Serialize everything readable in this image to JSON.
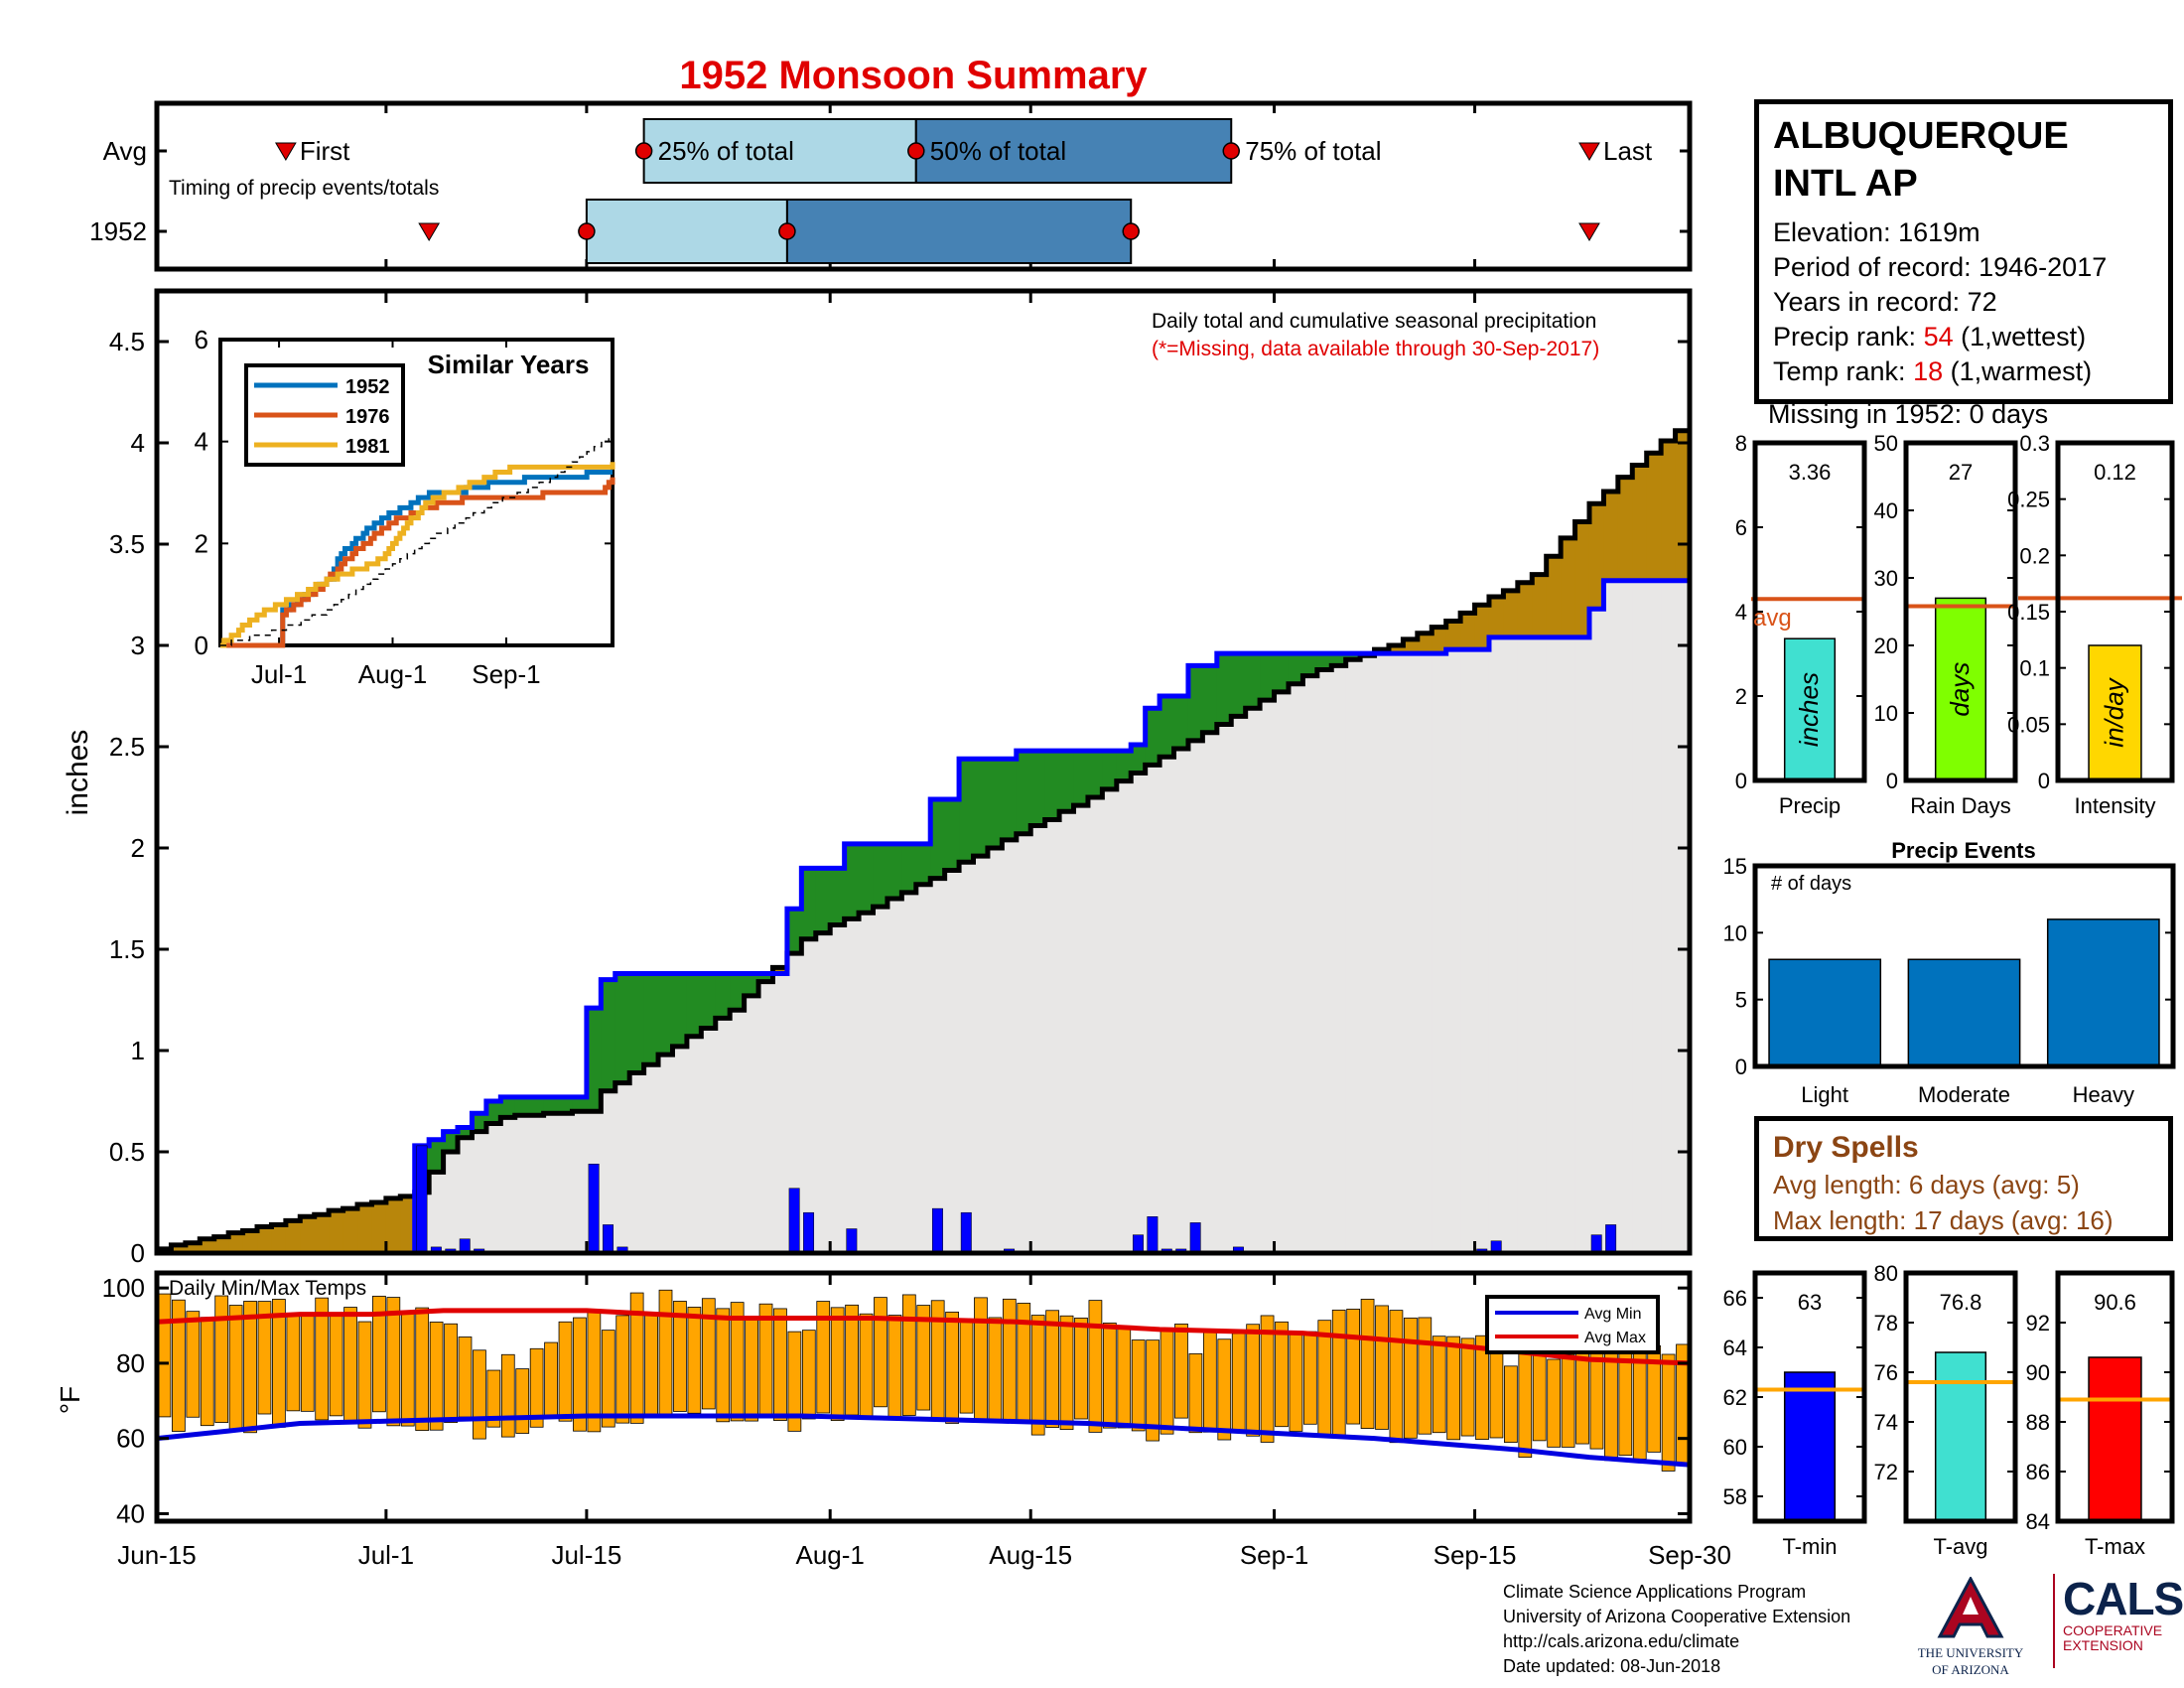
{
  "title": "1952 Monsoon Summary",
  "station": {
    "name_line1": "ALBUQUERQUE",
    "name_line2": "INTL AP",
    "elevation": "Elevation: 1619m",
    "period": "Period of record: 1946-2017",
    "years": "Years in record: 72",
    "precip_rank_label": "Precip rank: ",
    "precip_rank_value": "54",
    "precip_rank_note": " (1,wettest)",
    "temp_rank_label": "Temp rank: ",
    "temp_rank_value": "18",
    "temp_rank_note": " (1,warmest)",
    "missing": "Missing in 1952: 0 days"
  },
  "dry_spells": {
    "title": "Dry Spells",
    "avg": "Avg length: 6 days (avg: 5)",
    "max": "Max length: 17 days (avg: 16)"
  },
  "credits": {
    "line1": "Climate Science Applications Program",
    "line2": "University of Arizona Cooperative Extension",
    "line3": "http://cals.arizona.edu/climate",
    "line4": " Date updated: 08-Jun-2018"
  },
  "logos": {
    "ua_line1": "THE UNIVERSITY",
    "ua_line2": "OF ARIZONA",
    "cals": "CALS",
    "cals_sub1": "COOPERATIVE",
    "cals_sub2": "EXTENSION"
  },
  "colors": {
    "title": "#e00000",
    "above_avg": "#b8860b",
    "below_avg": "#228b22",
    "avg_line": "#0000ff",
    "cum_line": "#000000",
    "fill_bg": "#e8e7e6",
    "bar_light": "#add8e6",
    "bar_dark": "#4682b4",
    "temp_bar": "#ffa500",
    "avg_ref": "#d95319",
    "events_bar": "#0072bd"
  },
  "chart_data": [
    {
      "id": "timing",
      "type": "bar",
      "xticklabels": [
        "Jun-15",
        "Jul-1",
        "Jul-15",
        "Aug-1",
        "Aug-15",
        "Sep-1",
        "Sep-15",
        "Sep-30"
      ],
      "xticks_day": [
        0,
        16,
        30,
        47,
        61,
        78,
        92,
        107
      ],
      "rows": [
        "Avg",
        "1952"
      ],
      "note": "Timing of precip events/totals",
      "labels": {
        "first": "First",
        "p25": "25% of total",
        "p50": "50% of total",
        "p75": "75% of total",
        "last": "Last"
      },
      "avg": {
        "first": 9,
        "p25": 34,
        "p50": 53,
        "p75": 75,
        "last": 100
      },
      "y1952": {
        "first": 19,
        "p25": 30,
        "p50": 44,
        "p75": 68,
        "last": 100
      }
    },
    {
      "id": "cumulative",
      "type": "area",
      "title": "Daily total and cumulative seasonal precipitation",
      "subtitle": "(*=Missing, data available through 30-Sep-2017)",
      "ylabel": "inches",
      "ylim": [
        0,
        4.75
      ],
      "yticks": [
        0,
        0.5,
        1,
        1.5,
        2,
        2.5,
        3,
        3.5,
        4,
        4.5
      ],
      "yticklabels": [
        "0",
        "0.5",
        "1",
        "1.5",
        "2",
        "2.5",
        "3",
        "3.5",
        "4",
        "4.5"
      ],
      "xlim_days": [
        0,
        107
      ],
      "avg_cum": [
        [
          0,
          0.02
        ],
        [
          18,
          0.3
        ],
        [
          19,
          0.4
        ],
        [
          20,
          0.5
        ],
        [
          21,
          0.57
        ],
        [
          22,
          0.6
        ],
        [
          24,
          0.67
        ],
        [
          30,
          0.7
        ],
        [
          31,
          0.8
        ],
        [
          40,
          1.2
        ],
        [
          45,
          1.55
        ],
        [
          52,
          1.78
        ],
        [
          58,
          2.0
        ],
        [
          65,
          2.25
        ],
        [
          70,
          2.45
        ],
        [
          75,
          2.65
        ],
        [
          80,
          2.85
        ],
        [
          86,
          3.0
        ],
        [
          90,
          3.12
        ],
        [
          96,
          3.35
        ],
        [
          100,
          3.7
        ],
        [
          104,
          3.95
        ],
        [
          107,
          4.12
        ]
      ],
      "obs_cum": [
        [
          0,
          0
        ],
        [
          18,
          0
        ],
        [
          18,
          0.53
        ],
        [
          19,
          0.56
        ],
        [
          20,
          0.6
        ],
        [
          21,
          0.62
        ],
        [
          22,
          0.69
        ],
        [
          23,
          0.75
        ],
        [
          24,
          0.77
        ],
        [
          30,
          0.77
        ],
        [
          30,
          1.21
        ],
        [
          31,
          1.35
        ],
        [
          32,
          1.38
        ],
        [
          44,
          1.38
        ],
        [
          44,
          1.7
        ],
        [
          45,
          1.9
        ],
        [
          47,
          1.9
        ],
        [
          48,
          2.02
        ],
        [
          53,
          2.02
        ],
        [
          54,
          2.24
        ],
        [
          56,
          2.44
        ],
        [
          60,
          2.48
        ],
        [
          68,
          2.51
        ],
        [
          69,
          2.69
        ],
        [
          70,
          2.75
        ],
        [
          71,
          2.75
        ],
        [
          72,
          2.9
        ],
        [
          74,
          2.96
        ],
        [
          90,
          2.98
        ],
        [
          92,
          2.98
        ],
        [
          93,
          3.04
        ],
        [
          100,
          3.04
        ],
        [
          100,
          3.18
        ],
        [
          101,
          3.32
        ],
        [
          107,
          3.32
        ]
      ],
      "daily_precip": [
        [
          18,
          0.53
        ],
        [
          19,
          0.03
        ],
        [
          20,
          0.02
        ],
        [
          21,
          0.07
        ],
        [
          22,
          0.02
        ],
        [
          30,
          0.44
        ],
        [
          31,
          0.14
        ],
        [
          32,
          0.03
        ],
        [
          44,
          0.32
        ],
        [
          45,
          0.2
        ],
        [
          48,
          0.12
        ],
        [
          54,
          0.22
        ],
        [
          56,
          0.2
        ],
        [
          59,
          0.02
        ],
        [
          68,
          0.09
        ],
        [
          69,
          0.18
        ],
        [
          70,
          0.02
        ],
        [
          71,
          0.02
        ],
        [
          72,
          0.15
        ],
        [
          75,
          0.03
        ],
        [
          92,
          0.02
        ],
        [
          93,
          0.06
        ],
        [
          100,
          0.09
        ],
        [
          101,
          0.14
        ]
      ]
    },
    {
      "id": "similar_years",
      "type": "line",
      "title": "Similar Years",
      "ylim": [
        0,
        6
      ],
      "yticks": [
        0,
        2,
        4,
        6
      ],
      "xticks_day": [
        16,
        47,
        78
      ],
      "xticklabels": [
        "Jul-1",
        "Aug-1",
        "Sep-1"
      ],
      "series": [
        {
          "name": "1952",
          "color": "#0072bd",
          "points": [
            [
              0,
              0
            ],
            [
              16,
              0
            ],
            [
              17,
              0.7
            ],
            [
              30,
              1.3
            ],
            [
              32,
              1.7
            ],
            [
              36,
              2.0
            ],
            [
              44,
              2.5
            ],
            [
              50,
              2.7
            ],
            [
              58,
              3.0
            ],
            [
              67,
              3.05
            ],
            [
              76,
              3.2
            ],
            [
              90,
              3.3
            ],
            [
              100,
              3.35
            ],
            [
              107,
              3.35
            ]
          ]
        },
        {
          "name": "1976",
          "color": "#d95319",
          "points": [
            [
              0,
              0
            ],
            [
              16,
              0
            ],
            [
              17,
              0.6
            ],
            [
              28,
              1.2
            ],
            [
              36,
              1.8
            ],
            [
              46,
              2.4
            ],
            [
              60,
              2.8
            ],
            [
              70,
              2.9
            ],
            [
              88,
              2.95
            ],
            [
              100,
              3.0
            ],
            [
              104,
              3.0
            ],
            [
              107,
              3.3
            ]
          ]
        },
        {
          "name": "1981",
          "color": "#edb120",
          "points": [
            [
              0,
              0
            ],
            [
              10,
              0.6
            ],
            [
              22,
              1.0
            ],
            [
              30,
              1.3
            ],
            [
              38,
              1.5
            ],
            [
              44,
              1.7
            ],
            [
              48,
              2.1
            ],
            [
              56,
              2.8
            ],
            [
              66,
              3.1
            ],
            [
              80,
              3.5
            ],
            [
              107,
              3.55
            ]
          ]
        },
        {
          "name": "",
          "color": "#000000",
          "dashed": true,
          "points": [
            [
              0,
              0
            ],
            [
              16,
              0.3
            ],
            [
              30,
              0.7
            ],
            [
              45,
              1.5
            ],
            [
              60,
              2.2
            ],
            [
              75,
              2.8
            ],
            [
              90,
              3.25
            ],
            [
              100,
              3.75
            ],
            [
              107,
              4.12
            ]
          ]
        }
      ]
    },
    {
      "id": "temps",
      "type": "bar",
      "title": "Daily Min/Max Temps",
      "ylabel": "°F",
      "ylim": [
        38,
        104
      ],
      "yticks": [
        40,
        60,
        80,
        100
      ],
      "yticklabels": [
        "40",
        "60",
        "80",
        "100"
      ],
      "legend": [
        "Avg Min",
        "Avg Max"
      ],
      "tmax_points": [
        [
          0,
          96
        ],
        [
          5,
          94
        ],
        [
          10,
          93
        ],
        [
          15,
          95
        ],
        [
          18,
          91
        ],
        [
          22,
          82
        ],
        [
          25,
          78
        ],
        [
          28,
          88
        ],
        [
          32,
          94
        ],
        [
          36,
          97
        ],
        [
          40,
          96
        ],
        [
          44,
          90
        ],
        [
          48,
          97
        ],
        [
          52,
          96
        ],
        [
          56,
          94
        ],
        [
          60,
          93
        ],
        [
          64,
          95
        ],
        [
          68,
          88
        ],
        [
          72,
          86
        ],
        [
          76,
          91
        ],
        [
          80,
          92
        ],
        [
          84,
          96
        ],
        [
          88,
          89
        ],
        [
          92,
          86
        ],
        [
          94,
          82
        ],
        [
          98,
          82
        ],
        [
          100,
          85
        ],
        [
          104,
          84
        ],
        [
          107,
          80
        ]
      ],
      "tmin_points": [
        [
          0,
          65
        ],
        [
          4,
          63
        ],
        [
          8,
          64
        ],
        [
          12,
          66
        ],
        [
          16,
          64
        ],
        [
          20,
          63
        ],
        [
          24,
          62
        ],
        [
          28,
          65
        ],
        [
          32,
          64
        ],
        [
          36,
          66
        ],
        [
          40,
          65
        ],
        [
          44,
          64
        ],
        [
          48,
          66
        ],
        [
          52,
          65
        ],
        [
          56,
          64
        ],
        [
          60,
          64
        ],
        [
          64,
          63
        ],
        [
          68,
          62
        ],
        [
          72,
          63
        ],
        [
          76,
          62
        ],
        [
          80,
          61
        ],
        [
          84,
          61
        ],
        [
          88,
          60
        ],
        [
          92,
          58
        ],
        [
          96,
          57
        ],
        [
          100,
          56
        ],
        [
          104,
          54
        ],
        [
          107,
          55
        ]
      ],
      "avg_max": [
        [
          0,
          91
        ],
        [
          5,
          92
        ],
        [
          10,
          93
        ],
        [
          15,
          93
        ],
        [
          20,
          94
        ],
        [
          30,
          94
        ],
        [
          40,
          92
        ],
        [
          50,
          92
        ],
        [
          60,
          91
        ],
        [
          70,
          89
        ],
        [
          80,
          88
        ],
        [
          90,
          85
        ],
        [
          95,
          83
        ],
        [
          100,
          81
        ],
        [
          107,
          80
        ]
      ],
      "avg_min": [
        [
          0,
          60
        ],
        [
          5,
          62
        ],
        [
          10,
          64
        ],
        [
          20,
          65
        ],
        [
          30,
          66
        ],
        [
          45,
          66
        ],
        [
          55,
          65
        ],
        [
          65,
          64
        ],
        [
          75,
          62
        ],
        [
          85,
          60
        ],
        [
          95,
          57
        ],
        [
          100,
          55
        ],
        [
          107,
          53
        ]
      ]
    },
    {
      "id": "precip_bar",
      "type": "bar",
      "value": 3.36,
      "value_label": "3.36",
      "avg": 4.3,
      "ylim": [
        0,
        8
      ],
      "yticks": [
        0,
        2,
        4,
        6,
        8
      ],
      "inner_label": "inches",
      "xlabel": "Precip",
      "avg_label": "avg",
      "color": "#40e0d0"
    },
    {
      "id": "raindays_bar",
      "type": "bar",
      "value": 27,
      "value_label": "27",
      "avg": 25.8,
      "ylim": [
        0,
        50
      ],
      "yticks": [
        0,
        10,
        20,
        30,
        40,
        50
      ],
      "inner_label": "days",
      "xlabel": "Rain Days",
      "color": "#7fff00"
    },
    {
      "id": "intensity_bar",
      "type": "bar",
      "value": 0.12,
      "value_label": "0.12",
      "avg": 0.162,
      "ylim": [
        0,
        0.3
      ],
      "yticks": [
        0,
        0.05,
        0.1,
        0.15,
        0.2,
        0.25,
        0.3
      ],
      "yticklabels": [
        "0",
        "0.05",
        "0.1",
        "0.15",
        "0.2",
        "0.25",
        "0.3"
      ],
      "inner_label": "in/day",
      "xlabel": "Intensity",
      "color": "#ffd700"
    },
    {
      "id": "events",
      "type": "bar",
      "title": "Precip Events",
      "ylabel_inside": "# of days",
      "categories": [
        "Light",
        "Moderate",
        "Heavy"
      ],
      "values": [
        8,
        8,
        11
      ],
      "ylim": [
        0,
        15
      ],
      "yticks": [
        0,
        5,
        10,
        15
      ]
    },
    {
      "id": "tmin_bar",
      "type": "bar",
      "value": 63,
      "value_label": "63",
      "avg": 62.3,
      "ylim": [
        57,
        67
      ],
      "yticks": [
        58,
        60,
        62,
        64,
        66
      ],
      "xlabel": "T-min",
      "color": "#0000ff"
    },
    {
      "id": "tavg_bar",
      "type": "bar",
      "value": 76.8,
      "value_label": "76.8",
      "avg": 75.6,
      "ylim": [
        70,
        80
      ],
      "yticks": [
        72,
        74,
        76,
        78,
        80
      ],
      "xlabel": "T-avg",
      "color": "#40e0d0"
    },
    {
      "id": "tmax_bar",
      "type": "bar",
      "value": 90.6,
      "value_label": "90.6",
      "avg": 88.9,
      "ylim": [
        84,
        94
      ],
      "yticks": [
        84,
        86,
        88,
        90,
        92
      ],
      "xlabel": "T-max",
      "color": "#ff0000"
    }
  ]
}
